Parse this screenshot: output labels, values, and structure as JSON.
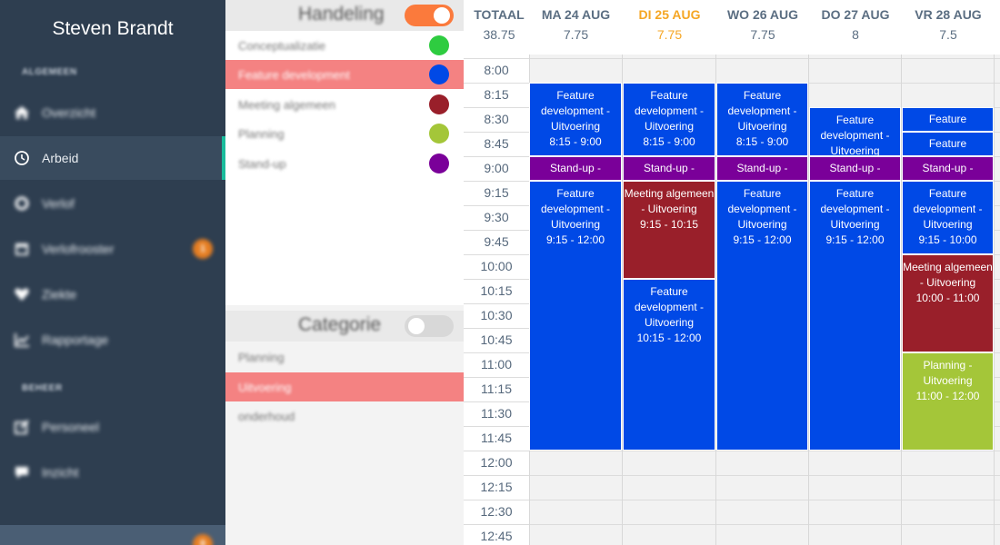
{
  "sidebar": {
    "user_name": "Steven Brandt",
    "section_general": "ALGEMEEN",
    "section_manage": "BEHEER",
    "items": [
      {
        "label": "Overzicht",
        "icon": "home-icon"
      },
      {
        "label": "Arbeid",
        "icon": "clock-icon",
        "active": true
      },
      {
        "label": "Verlof",
        "icon": "sun-icon"
      },
      {
        "label": "Verlofrooster",
        "icon": "calendar-icon",
        "badge": "1"
      },
      {
        "label": "Ziekte",
        "icon": "heartbeat-icon"
      },
      {
        "label": "Rapportage",
        "icon": "line-chart-icon"
      },
      {
        "label": "Personeel",
        "icon": "edit-icon"
      },
      {
        "label": "Inzicht",
        "icon": "chat-icon"
      }
    ],
    "bottom_badge": "8"
  },
  "handeling": {
    "title": "Handeling",
    "toggle_on": true,
    "items": [
      {
        "label": "Conceptualizatie",
        "color": "#2ecc40"
      },
      {
        "label": "Feature development",
        "color": "#0049e6",
        "selected": true
      },
      {
        "label": "Meeting algemeen",
        "color": "#991f2a"
      },
      {
        "label": "Planning",
        "color": "#a4c639"
      },
      {
        "label": "Stand-up",
        "color": "#7a0099"
      }
    ]
  },
  "categorie": {
    "title": "Categorie",
    "toggle_on": false,
    "items": [
      {
        "label": "Planning"
      },
      {
        "label": "Uitvoering",
        "selected": true
      },
      {
        "label": "onderhoud"
      }
    ]
  },
  "calendar": {
    "total_label": "TOTAAL",
    "total_hours": "38.75",
    "days": [
      {
        "label": "MA 24 AUG",
        "hours": "7.75"
      },
      {
        "label": "DI 25 AUG",
        "hours": "7.75",
        "today": true
      },
      {
        "label": "WO 26 AUG",
        "hours": "7.75"
      },
      {
        "label": "DO 27 AUG",
        "hours": "8"
      },
      {
        "label": "VR 28 AUG",
        "hours": "7.5"
      }
    ],
    "times": [
      "8:00",
      "8:15",
      "8:30",
      "8:45",
      "9:00",
      "9:15",
      "9:30",
      "9:45",
      "10:00",
      "10:15",
      "10:30",
      "10:45",
      "11:00",
      "11:15",
      "11:30",
      "11:45",
      "12:00",
      "12:15",
      "12:30",
      "12:45"
    ],
    "events": [
      {
        "day": 0,
        "start": 1,
        "slots": 3,
        "lines": [
          "Feature",
          "development -",
          "Uitvoering",
          "8:15 - 9:00"
        ],
        "color": "#0049e6"
      },
      {
        "day": 0,
        "start": 4,
        "slots": 1,
        "lines": [
          "Stand-up -"
        ],
        "color": "#7a0099"
      },
      {
        "day": 0,
        "start": 5,
        "slots": 11,
        "lines": [
          "Feature",
          "development -",
          "Uitvoering",
          "9:15 - 12:00"
        ],
        "color": "#0049e6"
      },
      {
        "day": 1,
        "start": 1,
        "slots": 3,
        "lines": [
          "Feature",
          "development -",
          "Uitvoering",
          "8:15 - 9:00"
        ],
        "color": "#0049e6"
      },
      {
        "day": 1,
        "start": 4,
        "slots": 1,
        "lines": [
          "Stand-up -"
        ],
        "color": "#7a0099"
      },
      {
        "day": 1,
        "start": 5,
        "slots": 4,
        "lines": [
          "Meeting algemeen",
          "- Uitvoering",
          "9:15 - 10:15"
        ],
        "color": "#991f2a"
      },
      {
        "day": 1,
        "start": 9,
        "slots": 7,
        "lines": [
          "Feature",
          "development -",
          "Uitvoering",
          "10:15 - 12:00"
        ],
        "color": "#0049e6"
      },
      {
        "day": 2,
        "start": 1,
        "slots": 3,
        "lines": [
          "Feature",
          "development -",
          "Uitvoering",
          "8:15 - 9:00"
        ],
        "color": "#0049e6"
      },
      {
        "day": 2,
        "start": 4,
        "slots": 1,
        "lines": [
          "Stand-up -"
        ],
        "color": "#7a0099"
      },
      {
        "day": 2,
        "start": 5,
        "slots": 11,
        "lines": [
          "Feature",
          "development -",
          "Uitvoering",
          "9:15 - 12:00"
        ],
        "color": "#0049e6"
      },
      {
        "day": 3,
        "start": 2,
        "slots": 2,
        "lines": [
          "Feature",
          "development -",
          "Uitvoering"
        ],
        "color": "#0049e6"
      },
      {
        "day": 3,
        "start": 4,
        "slots": 1,
        "lines": [
          "Stand-up -"
        ],
        "color": "#7a0099"
      },
      {
        "day": 3,
        "start": 5,
        "slots": 11,
        "lines": [
          "Feature",
          "development -",
          "Uitvoering",
          "9:15 - 12:00"
        ],
        "color": "#0049e6"
      },
      {
        "day": 4,
        "start": 2,
        "slots": 1,
        "lines": [
          "Feature"
        ],
        "color": "#0049e6"
      },
      {
        "day": 4,
        "start": 3,
        "slots": 1,
        "lines": [
          "Feature"
        ],
        "color": "#0049e6"
      },
      {
        "day": 4,
        "start": 4,
        "slots": 1,
        "lines": [
          "Stand-up -"
        ],
        "color": "#7a0099"
      },
      {
        "day": 4,
        "start": 5,
        "slots": 3,
        "lines": [
          "Feature",
          "development -",
          "Uitvoering",
          "9:15 - 10:00"
        ],
        "color": "#0049e6"
      },
      {
        "day": 4,
        "start": 8,
        "slots": 4,
        "lines": [
          "Meeting algemeen",
          "- Uitvoering",
          "10:00 - 11:00"
        ],
        "color": "#991f2a"
      },
      {
        "day": 4,
        "start": 12,
        "slots": 4,
        "lines": [
          "Planning -",
          "Uitvoering",
          "11:00 - 12:00"
        ],
        "color": "#a4c639"
      }
    ]
  }
}
